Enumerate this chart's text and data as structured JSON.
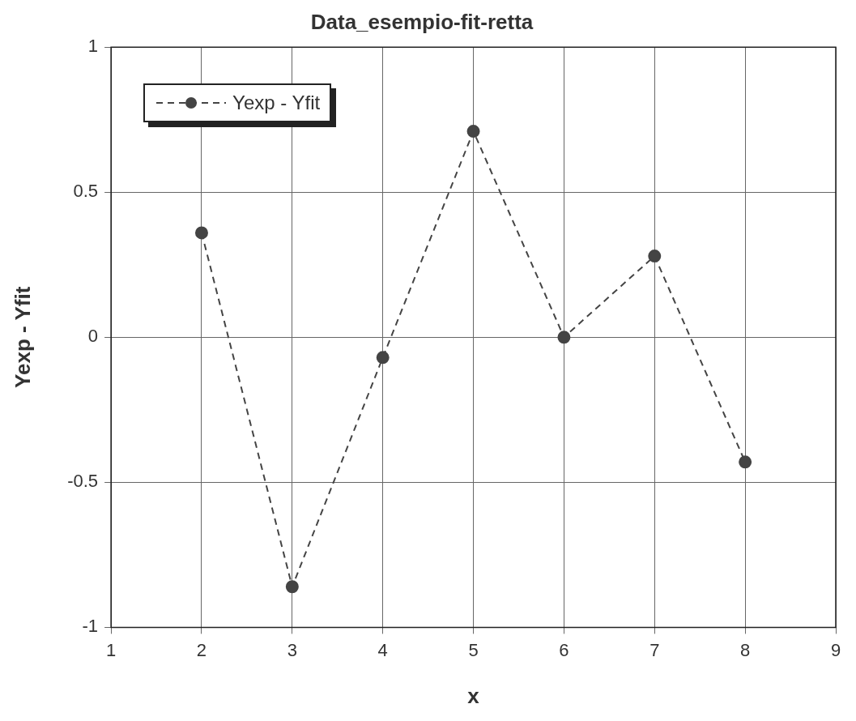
{
  "chart_data": {
    "type": "line",
    "title": "Data_esempio-fit-retta",
    "xlabel": "x",
    "ylabel": "Yexp - Yfit",
    "x": [
      2,
      3,
      4,
      5,
      6,
      7,
      8
    ],
    "series": [
      {
        "name": "Yexp - Yfit",
        "color": "#444444",
        "values": [
          0.36,
          -0.86,
          -0.07,
          0.71,
          0.0,
          0.28,
          -0.43
        ]
      }
    ],
    "xlim": [
      1,
      9
    ],
    "xticks": [
      1,
      2,
      3,
      4,
      5,
      6,
      7,
      8,
      9
    ],
    "ylim": [
      -1,
      1
    ],
    "yticks": [
      -1,
      -0.5,
      0,
      0.5,
      1
    ],
    "grid": true,
    "legend": "top left",
    "marker": "circle",
    "line_style": "dashed"
  }
}
